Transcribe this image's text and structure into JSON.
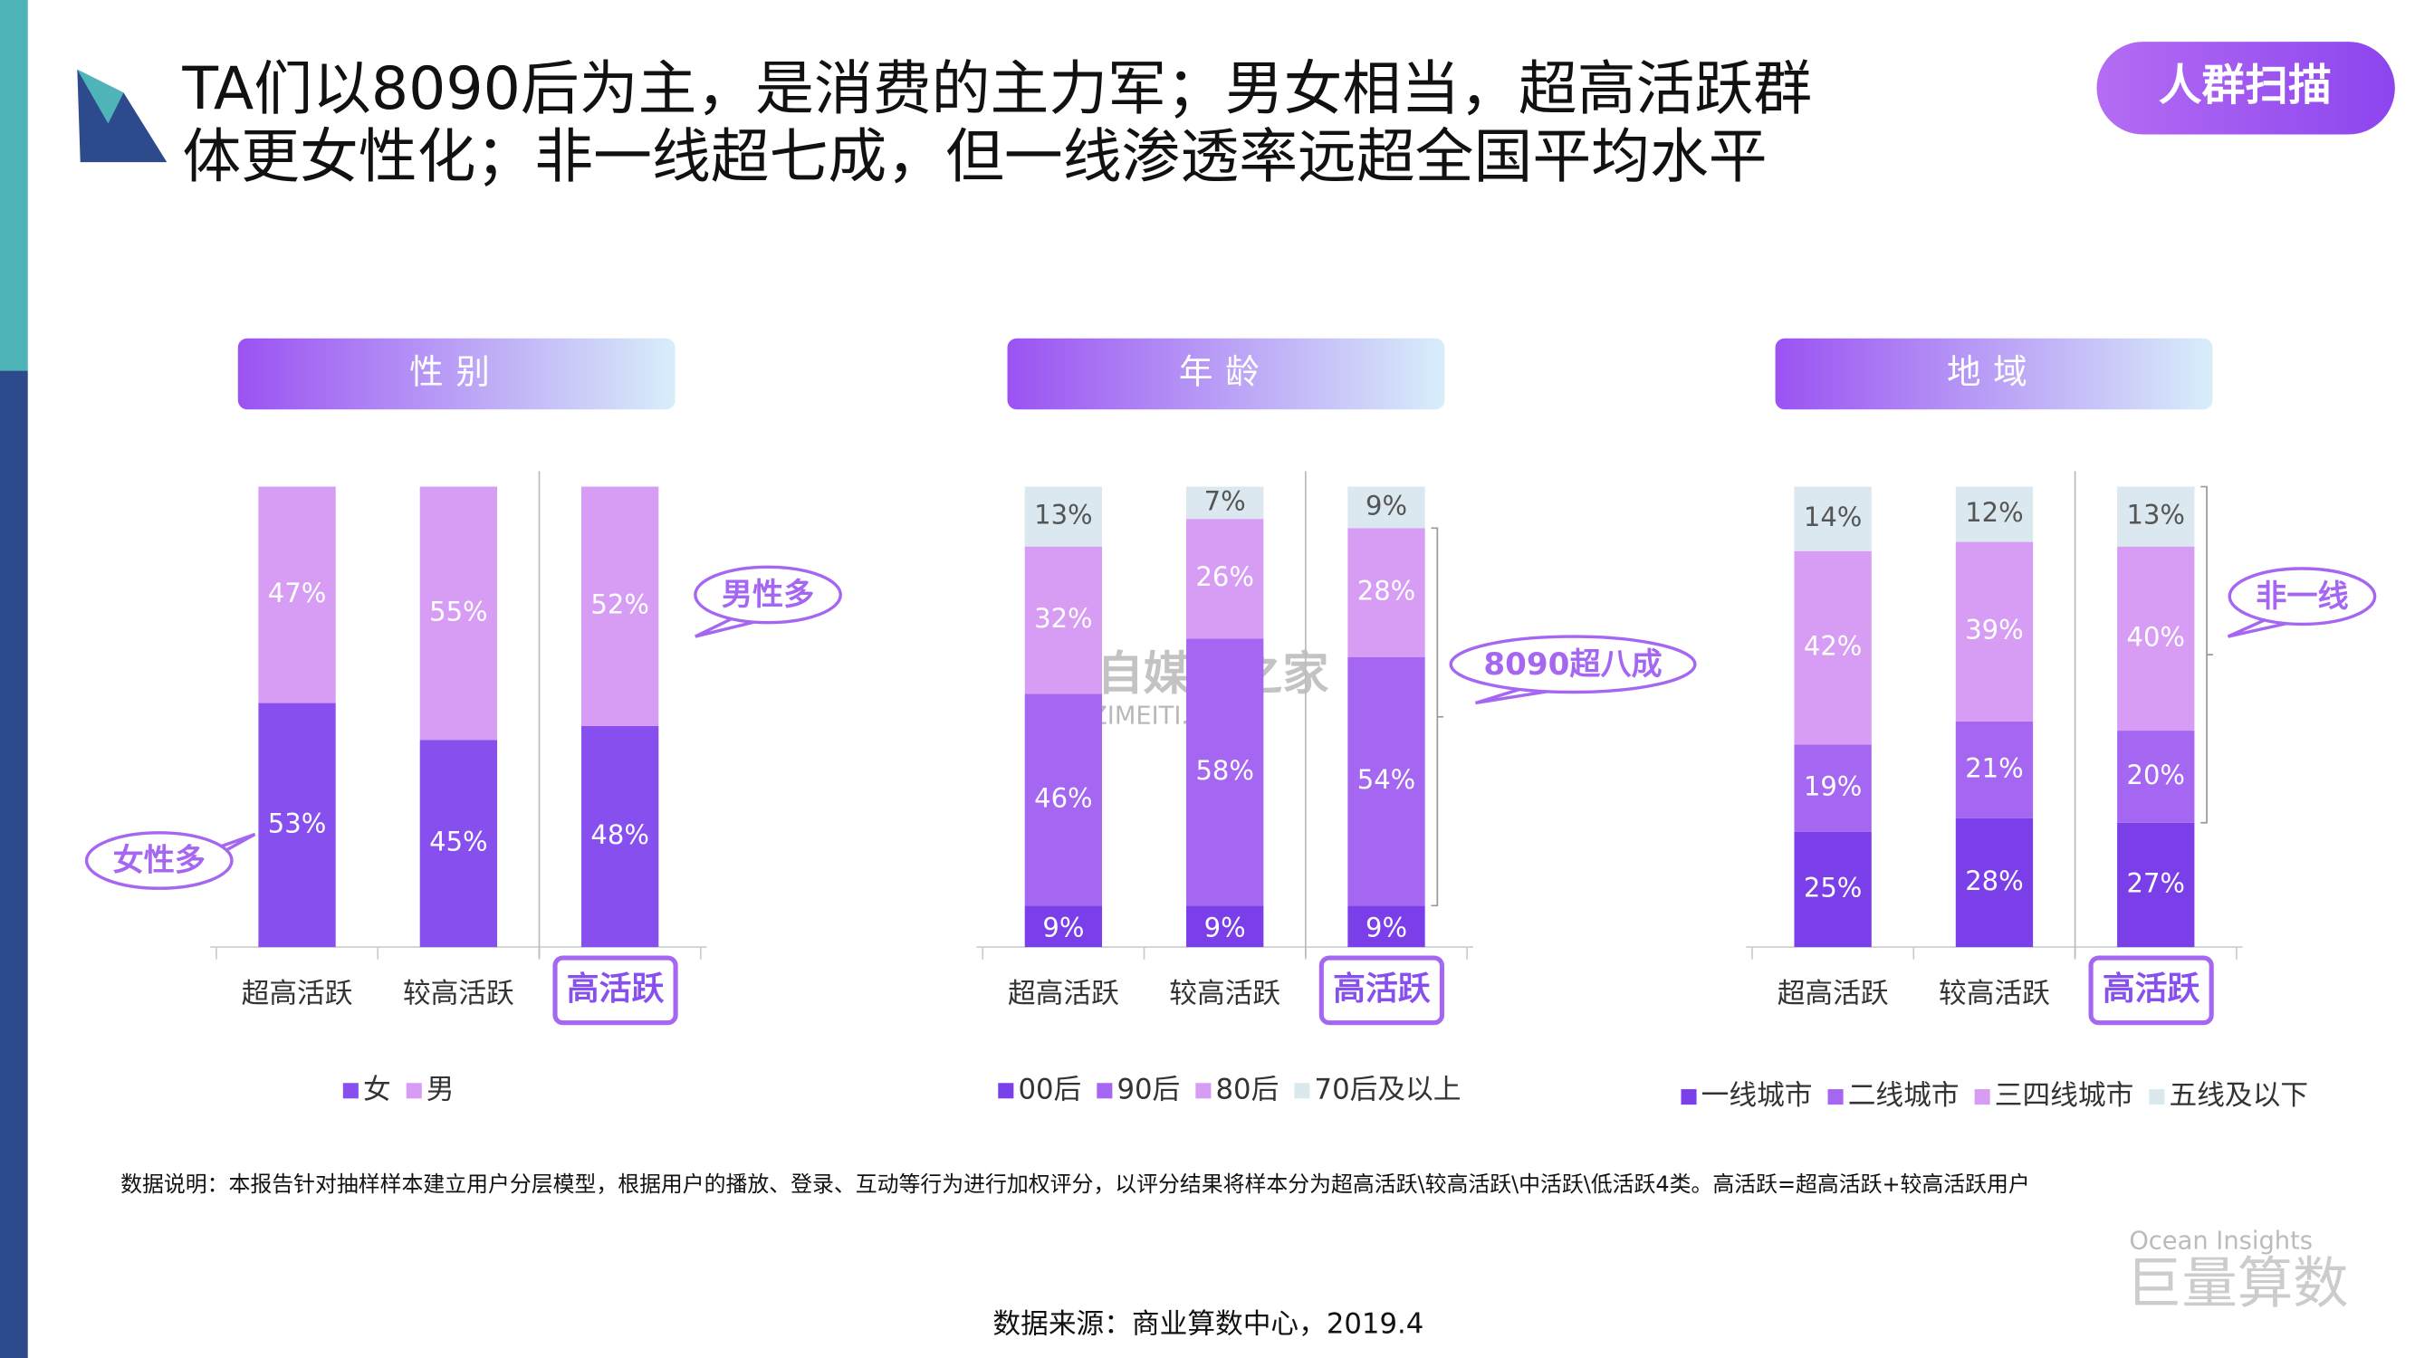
{
  "header": {
    "title_line1": "TA们以8090后为主，是消费的主力军；男女相当，超高活跃群",
    "title_line2": "体更女性化；非一线超七成，但一线渗透率远超全国平均水平",
    "badge": "人群扫描"
  },
  "chart_data": [
    {
      "type": "stacked_bar",
      "title": "性别",
      "categories": [
        "超高活跃",
        "较高活跃",
        "高活跃"
      ],
      "ylim": [
        0,
        100
      ],
      "annotations": [
        "女性多",
        "男性多"
      ],
      "series": [
        {
          "name": "女",
          "color": "#8750ee",
          "values": [
            53,
            45,
            48
          ],
          "value_labels": [
            "53%",
            "45%",
            "48%"
          ]
        },
        {
          "name": "男",
          "color": "#d79df5",
          "values": [
            47,
            55,
            52
          ],
          "value_labels": [
            "47%",
            "55%",
            "52%"
          ]
        }
      ]
    },
    {
      "type": "stacked_bar",
      "title": "年龄",
      "categories": [
        "超高活跃",
        "较高活跃",
        "高活跃"
      ],
      "ylim": [
        0,
        100
      ],
      "annotations": [
        "8090超八成"
      ],
      "series": [
        {
          "name": "00后",
          "color": "#7a3fe8",
          "values": [
            9,
            9,
            9
          ],
          "value_labels": [
            "9%",
            "9%",
            "9%"
          ]
        },
        {
          "name": "90后",
          "color": "#a566f1",
          "values": [
            46,
            58,
            54
          ],
          "value_labels": [
            "46%",
            "58%",
            "54%"
          ]
        },
        {
          "name": "80后",
          "color": "#d79df5",
          "values": [
            32,
            26,
            28
          ],
          "value_labels": [
            "32%",
            "26%",
            "28%"
          ]
        },
        {
          "name": "70后及以上",
          "color": "#dbe8f0",
          "values": [
            13,
            7,
            9
          ],
          "value_labels": [
            "13%",
            "7%",
            "9%"
          ]
        }
      ]
    },
    {
      "type": "stacked_bar",
      "title": "地域",
      "categories": [
        "超高活跃",
        "较高活跃",
        "高活跃"
      ],
      "ylim": [
        0,
        100
      ],
      "annotations": [
        "非一线"
      ],
      "series": [
        {
          "name": "一线城市",
          "color": "#7a3fe8",
          "values": [
            25,
            28,
            27
          ],
          "value_labels": [
            "25%",
            "28%",
            "27%"
          ]
        },
        {
          "name": "二线城市",
          "color": "#a566f1",
          "values": [
            19,
            21,
            20
          ],
          "value_labels": [
            "19%",
            "21%",
            "20%"
          ]
        },
        {
          "name": "三四线城市",
          "color": "#d79df5",
          "values": [
            42,
            39,
            40
          ],
          "value_labels": [
            "42%",
            "39%",
            "40%"
          ]
        },
        {
          "name": "五线及以下",
          "color": "#dbe8f0",
          "values": [
            14,
            12,
            13
          ],
          "value_labels": [
            "14%",
            "12%",
            "13%"
          ]
        }
      ]
    }
  ],
  "footer": {
    "note": "数据说明：本报告针对抽样样本建立用户分层模型，根据用户的播放、登录、互动等行为进行加权评分，以评分结果将样本分为超高活跃\\较高活跃\\中活跃\\低活跃4类。高活跃=超高活跃+较高活跃用户",
    "source": "数据来源：商业算数中心，2019.4",
    "logo_en": "Ocean Insights",
    "logo_cn": "巨量算数",
    "watermark_cn": "自媒体之家",
    "watermark_en": "ZIMEITI.FANS"
  }
}
